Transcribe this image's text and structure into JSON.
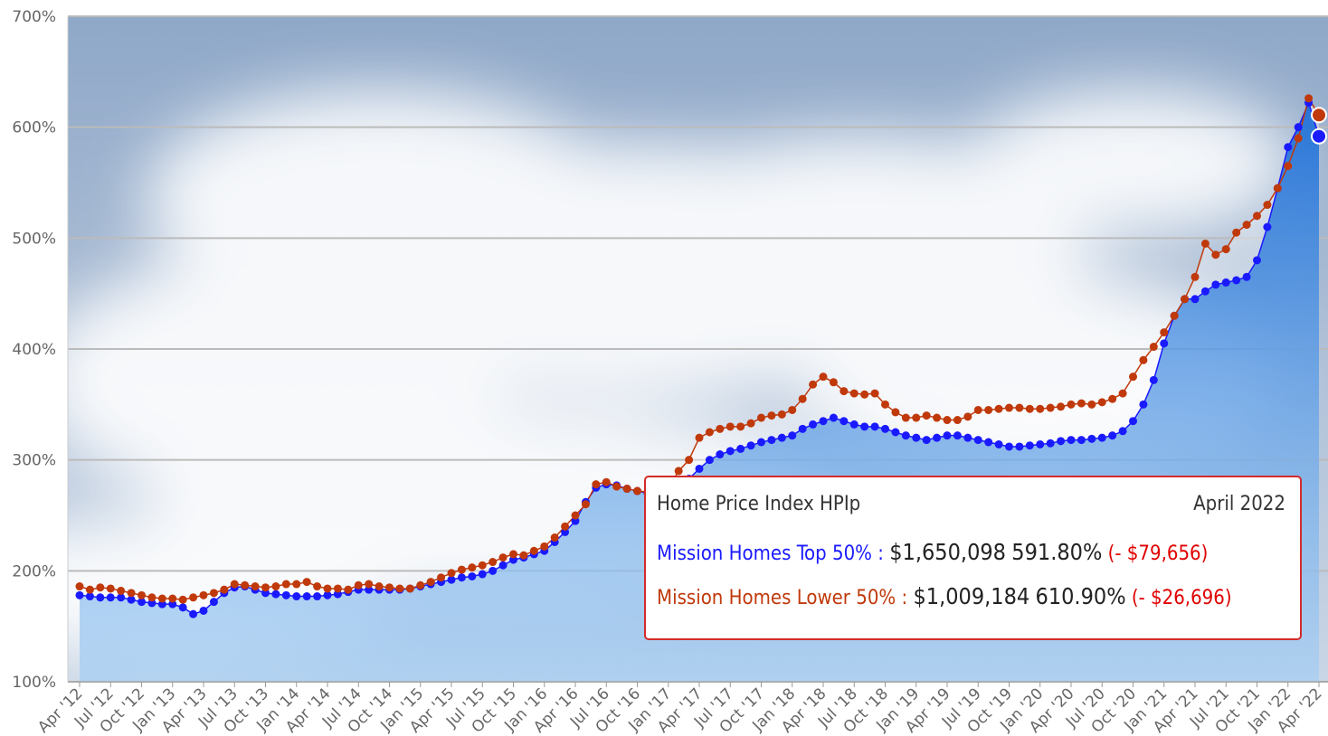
{
  "chart_data": {
    "type": "line",
    "ylim": [
      100,
      700
    ],
    "yticks": [
      {
        "value": 100,
        "label": "100%"
      },
      {
        "value": 200,
        "label": "200%"
      },
      {
        "value": 300,
        "label": "300%"
      },
      {
        "value": 400,
        "label": "400%"
      },
      {
        "value": 500,
        "label": "500%"
      },
      {
        "value": 600,
        "label": "600%"
      },
      {
        "value": 700,
        "label": "700%"
      }
    ],
    "grid": true,
    "categories": [
      "Apr '12",
      null,
      null,
      "Jul '12",
      null,
      null,
      "Oct '12",
      null,
      null,
      "Jan '13",
      null,
      null,
      "Apr '13",
      null,
      null,
      "Jul '13",
      null,
      null,
      "Oct '13",
      null,
      null,
      "Jan '14",
      null,
      null,
      "Apr '14",
      null,
      null,
      "Jul '14",
      null,
      null,
      "Oct '14",
      null,
      null,
      "Jan '15",
      null,
      null,
      "Apr '15",
      null,
      null,
      "Jul '15",
      null,
      null,
      "Oct '15",
      null,
      null,
      "Jan '16",
      null,
      null,
      "Apr '16",
      null,
      null,
      "Jul '16",
      null,
      null,
      "Oct '16",
      null,
      null,
      "Jan '17",
      null,
      null,
      "Apr '17",
      null,
      null,
      "Jul '17",
      null,
      null,
      "Oct '17",
      null,
      null,
      "Jan '18",
      null,
      null,
      "Apr '18",
      null,
      null,
      "Jul '18",
      null,
      null,
      "Oct '18",
      null,
      null,
      "Jan '19",
      null,
      null,
      "Apr '19",
      null,
      null,
      "Jul '19",
      null,
      null,
      "Oct '19",
      null,
      null,
      "Jan '20",
      null,
      null,
      "Apr '20",
      null,
      null,
      "Jul '20",
      null,
      null,
      "Oct '20",
      null,
      null,
      "Jan '21",
      null,
      null,
      "Apr '21",
      null,
      null,
      "Jul '21",
      null,
      null,
      "Oct '21",
      null,
      null,
      "Jan '22",
      null,
      null,
      "Apr '22"
    ],
    "series": [
      {
        "name": "Mission Homes Top 50%",
        "color": "#1a1aff",
        "values": [
          178,
          177,
          176,
          176,
          176,
          174,
          172,
          171,
          170,
          170,
          167,
          161,
          164,
          172,
          180,
          185,
          186,
          183,
          180,
          179,
          178,
          177,
          177,
          177,
          178,
          179,
          181,
          183,
          183,
          183,
          183,
          183,
          184,
          186,
          188,
          190,
          192,
          194,
          195,
          197,
          200,
          205,
          210,
          212,
          215,
          218,
          226,
          235,
          245,
          262,
          275,
          278,
          277,
          274,
          272,
          270,
          268,
          270,
          275,
          283,
          292,
          300,
          305,
          308,
          310,
          313,
          316,
          318,
          320,
          322,
          328,
          332,
          335,
          338,
          335,
          332,
          330,
          330,
          328,
          325,
          322,
          320,
          318,
          320,
          322,
          322,
          320,
          318,
          316,
          314,
          312,
          312,
          313,
          314,
          315,
          317,
          318,
          318,
          319,
          320,
          322,
          326,
          335,
          350,
          372,
          405,
          430,
          445,
          445,
          452,
          458,
          460,
          462,
          465,
          480,
          510,
          545,
          582,
          600,
          622,
          591.8
        ]
      },
      {
        "name": "Mission Homes Lower 50%",
        "color": "#c0390b",
        "values": [
          186,
          183,
          185,
          184,
          182,
          180,
          178,
          176,
          175,
          175,
          174,
          176,
          178,
          180,
          183,
          188,
          187,
          186,
          185,
          186,
          188,
          188,
          190,
          186,
          184,
          184,
          183,
          187,
          188,
          186,
          185,
          184,
          184,
          187,
          190,
          194,
          198,
          201,
          203,
          205,
          208,
          212,
          215,
          214,
          218,
          222,
          230,
          240,
          250,
          260,
          278,
          280,
          276,
          274,
          272,
          271,
          272,
          275,
          290,
          300,
          320,
          325,
          328,
          330,
          330,
          333,
          338,
          340,
          341,
          345,
          355,
          368,
          375,
          370,
          362,
          360,
          359,
          360,
          350,
          343,
          338,
          338,
          340,
          338,
          336,
          336,
          339,
          345,
          345,
          346,
          347,
          347,
          346,
          346,
          347,
          348,
          350,
          351,
          350,
          352,
          355,
          360,
          375,
          390,
          402,
          415,
          430,
          445,
          465,
          495,
          485,
          490,
          505,
          512,
          520,
          530,
          545,
          565,
          590,
          626,
          610.9
        ]
      }
    ]
  },
  "tooltip": {
    "title": "Home Price Index HPIp",
    "date": "April 2022",
    "rows": [
      {
        "label": "Mission Homes Top 50% :",
        "price": "$1,650,098",
        "percent": "591.80%",
        "change": "(- $79,656)"
      },
      {
        "label": "Mission Homes Lower 50% :",
        "price": "$1,009,184",
        "percent": "610.90%",
        "change": "(- $26,696)"
      }
    ]
  }
}
